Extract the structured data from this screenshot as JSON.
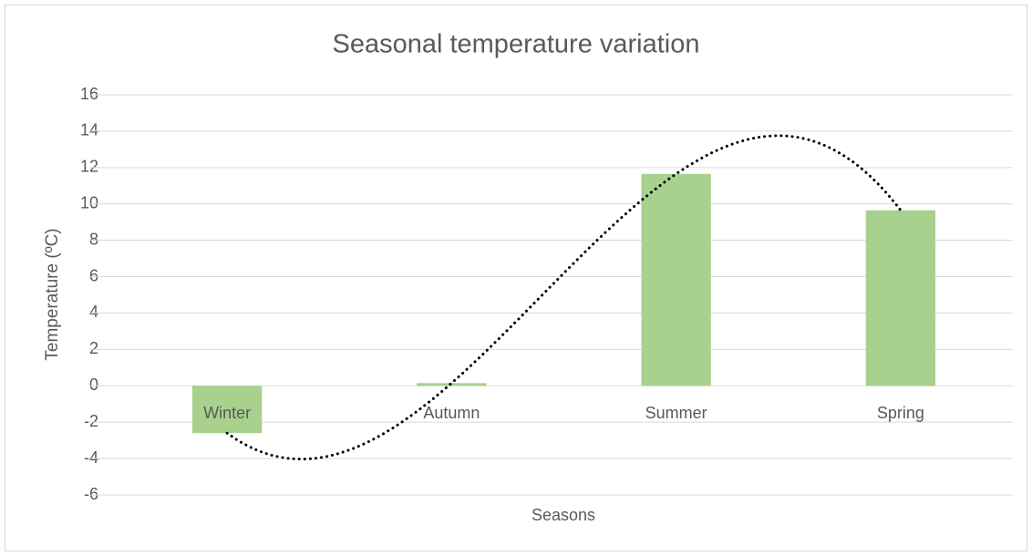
{
  "chart_data": {
    "type": "bar",
    "title": "Seasonal temperature variation",
    "x_label": "Seasons",
    "y_label": "Temperature (ºC)",
    "categories": [
      "Winter",
      "Autumn",
      "Summer",
      "Spring"
    ],
    "values": [
      -2.6,
      0.15,
      11.65,
      9.65
    ],
    "color": "#a9d18e",
    "ylim": [
      -6,
      16
    ],
    "yticks": [
      -6,
      -4,
      -2,
      0,
      2,
      4,
      6,
      8,
      10,
      12,
      14,
      16
    ],
    "grid": true,
    "trendline": "polynomial",
    "trendline_order": 3,
    "trendline_color": "#000000"
  }
}
